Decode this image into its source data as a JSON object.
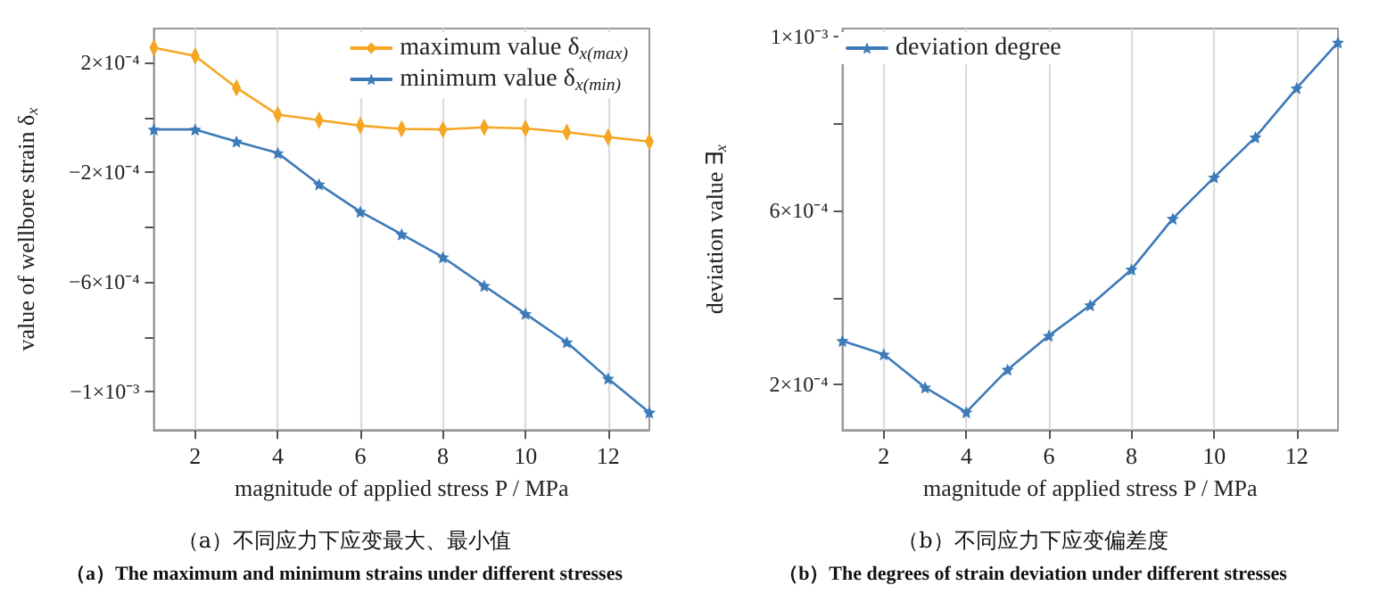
{
  "chart_data": [
    {
      "type": "line",
      "xlabel": "magnitude of applied stress P / MPa",
      "ylabel": "value of wellbore strain δ$_{x}$",
      "x": [
        1,
        2,
        3,
        4,
        5,
        6,
        7,
        8,
        9,
        10,
        11,
        12,
        13
      ],
      "series": [
        {
          "name": "maximum value δ$_{x(max)}$",
          "color": "#f5a623",
          "marker": "diamond",
          "values": [
            0.000254,
            0.000224,
            0.000108,
            1e-05,
            -1e-05,
            -3e-05,
            -4.2e-05,
            -4.4e-05,
            -3.6e-05,
            -4e-05,
            -5.4e-05,
            -7.2e-05,
            -8.8e-05
          ]
        },
        {
          "name": "minimum value δ$_{x(min)}$",
          "color": "#3d7ab8",
          "marker": "star",
          "values": [
            -4.4e-05,
            -4.4e-05,
            -8.8e-05,
            -0.00013,
            -0.000244,
            -0.000344,
            -0.000426,
            -0.00051,
            -0.000614,
            -0.000716,
            -0.00082,
            -0.000952,
            -0.001076
          ]
        }
      ],
      "xlim": [
        1,
        13
      ],
      "xticks": [
        2,
        4,
        6,
        8,
        10,
        12
      ],
      "ylim": [
        -0.00114,
        0.000324
      ],
      "yticks": [
        {
          "value": 0.0002,
          "label": "2×10⁻⁴"
        },
        {
          "value": 0,
          "label": null
        },
        {
          "value": -0.0002,
          "label": "−2×10⁻⁴"
        },
        {
          "value": -0.0004,
          "label": null
        },
        {
          "value": -0.0006,
          "label": "−6×10⁻⁴"
        },
        {
          "value": -0.0008,
          "label": null
        },
        {
          "value": -0.001,
          "label": "−1×10⁻³"
        }
      ],
      "grid": "x",
      "legend": "top right",
      "line_style": "solid",
      "annotations": [
        "（a）不同应力下应变最大、最小值",
        "（a）The maximum and minimum strains under different stresses"
      ]
    },
    {
      "type": "line",
      "xlabel": "magnitude of applied stress P / MPa",
      "ylabel": "deviation value ∃$_{x}$",
      "x": [
        1,
        2,
        3,
        4,
        5,
        6,
        7,
        8,
        9,
        10,
        11,
        12,
        13
      ],
      "series": [
        {
          "name": "deviation degree",
          "color": "#3d7ab8",
          "marker": "star",
          "values": [
            0.000301,
            0.00027,
            0.000194,
            0.000137,
            0.000235,
            0.000313,
            0.000383,
            0.000465,
            0.000582,
            0.000677,
            0.000769,
            0.000882,
            0.000987
          ]
        }
      ],
      "xlim": [
        1,
        13
      ],
      "xticks": [
        2,
        4,
        6,
        8,
        10,
        12
      ],
      "ylim": [
        9.6e-05,
        0.001019
      ],
      "yticks": [
        {
          "value": 0.0002,
          "label": "2×10⁻⁴"
        },
        {
          "value": 0.0004,
          "label": null
        },
        {
          "value": 0.0006,
          "label": "6×10⁻⁴"
        },
        {
          "value": 0.0008,
          "label": null
        },
        {
          "value": 0.001,
          "label": "1×10⁻³"
        }
      ],
      "grid": "x",
      "legend": "top left",
      "line_style": "solid",
      "annotations": [
        "（b）不同应力下应变偏差度",
        "（b）The degrees of strain deviation under different stresses"
      ]
    }
  ]
}
